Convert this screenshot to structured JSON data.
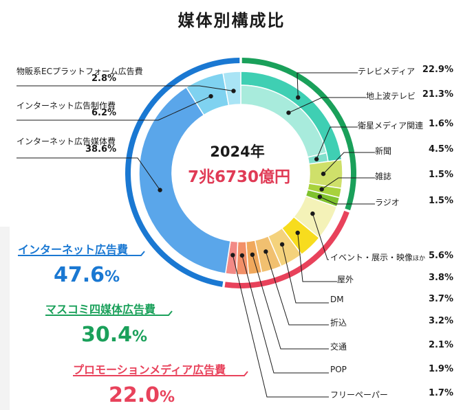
{
  "title": "媒体別構成比",
  "center": {
    "year": "2024年",
    "total": "7兆6730億円"
  },
  "categories": [
    {
      "name": "インターネット広告費",
      "value": "47.6",
      "unit": "%",
      "color": "#1a78d2"
    },
    {
      "name": "マスコミ四媒体広告費",
      "value": "30.4",
      "unit": "%",
      "color": "#1aa05a"
    },
    {
      "name": "プロモーションメディア広告費",
      "value": "22.0",
      "unit": "%",
      "color": "#e8425b"
    }
  ],
  "chart_data": {
    "type": "pie",
    "title": "媒体別構成比",
    "outer_ring": [
      {
        "label": "インターネット広告費",
        "value": 47.6
      },
      {
        "label": "マスコミ四媒体広告費",
        "value": 30.4
      },
      {
        "label": "プロモーションメディア広告費",
        "value": 22.0
      }
    ],
    "segments": [
      {
        "label": "テレビメディア",
        "value": 22.9,
        "pct_label": "22.9%",
        "group": "mass",
        "color": "#3fcfb3"
      },
      {
        "label": "地上波テレビ",
        "value": 21.3,
        "pct_label": "21.3%",
        "group": "mass",
        "sub": true,
        "color": "#a8ebdc"
      },
      {
        "label": "衛星メディア関連",
        "value": 1.6,
        "pct_label": "1.6%",
        "group": "mass",
        "sub": true,
        "color": "#7fdfcb"
      },
      {
        "label": "新聞",
        "value": 4.5,
        "pct_label": "4.5%",
        "group": "mass",
        "color": "#cfe06a"
      },
      {
        "label": "雑誌",
        "value": 1.5,
        "pct_label": "1.5%",
        "group": "mass",
        "color": "#a8d23c"
      },
      {
        "label": "ラジオ",
        "value": 1.5,
        "pct_label": "1.5%",
        "group": "mass",
        "color": "#7fc22e"
      },
      {
        "label": "イベント・展示・映像",
        "label_suffix": "ほか",
        "value": 5.6,
        "pct_label": "5.6%",
        "group": "promo",
        "color": "#f4f2b8"
      },
      {
        "label": "屋外",
        "value": 3.8,
        "pct_label": "3.8%",
        "group": "promo",
        "color": "#f7dc1e"
      },
      {
        "label": "DM",
        "value": 3.7,
        "pct_label": "3.7%",
        "group": "promo",
        "color": "#f4d27c"
      },
      {
        "label": "折込",
        "value": 3.2,
        "pct_label": "3.2%",
        "group": "promo",
        "color": "#f1c070"
      },
      {
        "label": "交通",
        "value": 2.1,
        "pct_label": "2.1%",
        "group": "promo",
        "color": "#f0a85c"
      },
      {
        "label": "POP",
        "value": 1.9,
        "pct_label": "1.9%",
        "group": "promo",
        "color": "#f29068"
      },
      {
        "label": "フリーペーパー",
        "value": 1.7,
        "pct_label": "1.7%",
        "group": "promo",
        "color": "#f28a86"
      },
      {
        "label": "インターネット広告媒体費",
        "value": 38.6,
        "pct_label": "38.6%",
        "group": "net",
        "color": "#5aa6ea"
      },
      {
        "label": "インターネット広告制作費",
        "value": 6.2,
        "pct_label": "6.2%",
        "group": "net",
        "color": "#7fd2f0"
      },
      {
        "label": "物販系ECプラットフォーム広告費",
        "value": 2.8,
        "pct_label": "2.8%",
        "group": "net",
        "color": "#a9e4f5"
      }
    ]
  }
}
